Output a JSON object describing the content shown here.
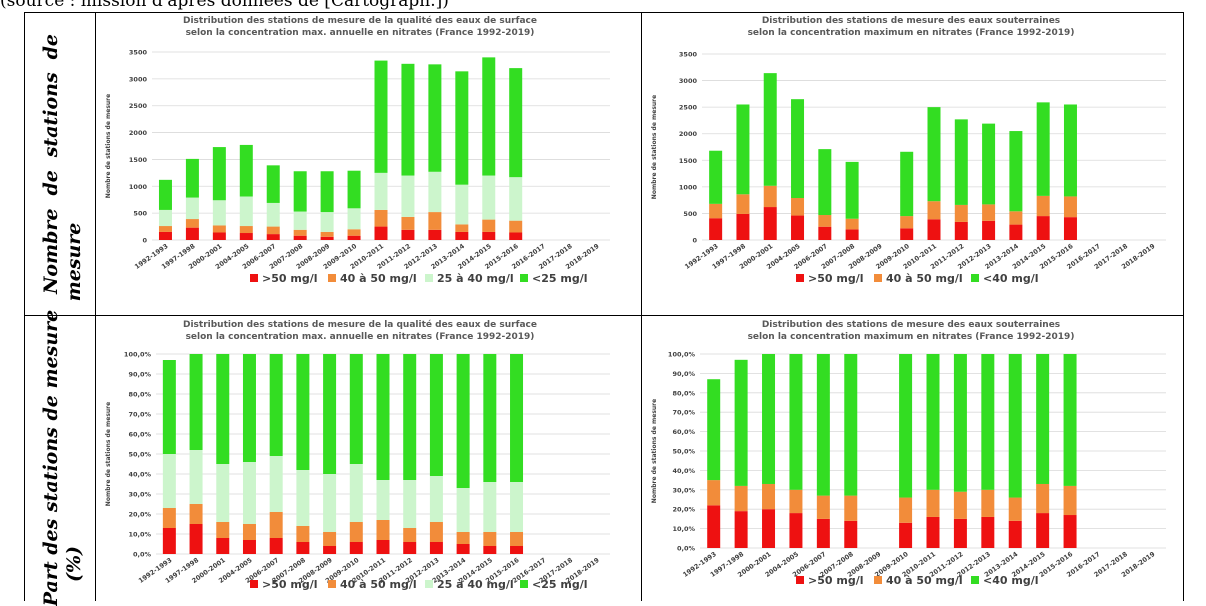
{
  "caption": "(source : mission d'après données de [Cartograph.])",
  "row_labels": {
    "top_line1": "Nombre de stations de",
    "top_line2": "mesure",
    "bottom_line1": "Part des stations de mesure",
    "bottom_line2": "(%)"
  },
  "colors": {
    "gt50": "#ee1111",
    "40to50": "#f28c3a",
    "25to40": "#ccf5cc",
    "lt25": "#33dd22",
    "lt40": "#33dd22"
  },
  "chart_data": [
    {
      "type": "bar",
      "stacked": true,
      "title_line1": "Distribution des stations de mesure de la qualité des eaux de surface",
      "title_line2": "selon la concentration max. annuelle en nitrates (France 1992-2019)",
      "ylabel": "Nombre de stations de mesure",
      "ylim": [
        0,
        3500
      ],
      "yticks": [
        "0",
        "500",
        "1000",
        "1500",
        "2000",
        "2500",
        "3000",
        "3500"
      ],
      "grid": true,
      "legend": "bottom",
      "categories": [
        "1992-1993",
        "1997-1998",
        "2000-2001",
        "2004-2005",
        "2006-2007",
        "2007-2008",
        "2008-2009",
        "2009-2010",
        "2010-2011",
        "2011-2012",
        "2012-2013",
        "2013-2014",
        "2014-2015",
        "2015-2016",
        "2016-2017",
        "2017-2018",
        "2018-2019"
      ],
      "series": [
        {
          "name": ">50 mg/l",
          "color": "#ee1111",
          "values": [
            150,
            230,
            140,
            130,
            110,
            80,
            60,
            80,
            250,
            190,
            190,
            150,
            150,
            140,
            0,
            0,
            0
          ]
        },
        {
          "name": "40 à 50 mg/l",
          "color": "#f28c3a",
          "values": [
            110,
            160,
            130,
            130,
            140,
            110,
            90,
            120,
            310,
            240,
            330,
            140,
            230,
            220,
            0,
            0,
            0
          ]
        },
        {
          "name": "25 à 40 mg/l",
          "color": "#ccf5cc",
          "values": [
            300,
            400,
            470,
            550,
            440,
            340,
            370,
            390,
            690,
            770,
            750,
            740,
            820,
            810,
            0,
            0,
            0
          ]
        },
        {
          "name": "<25 mg/l",
          "color": "#33dd22",
          "values": [
            560,
            720,
            990,
            960,
            700,
            750,
            760,
            700,
            2090,
            2080,
            2000,
            2110,
            2200,
            2030,
            0,
            0,
            0
          ]
        }
      ]
    },
    {
      "type": "bar",
      "stacked": true,
      "title_line1": "Distribution des stations de mesure des eaux souterraines",
      "title_line2": "selon la concentration maximum en nitrates (France 1992-2019)",
      "ylabel": "Nombre de stations de mesure",
      "ylim": [
        0,
        3500
      ],
      "yticks": [
        "0",
        "500",
        "1000",
        "1500",
        "2000",
        "2500",
        "3000",
        "3500"
      ],
      "grid": true,
      "legend": "bottom",
      "categories": [
        "1992-1993",
        "1997-1998",
        "2000-2001",
        "2004-2005",
        "2006-2007",
        "2007-2008",
        "2008-2009",
        "2009-2010",
        "2010-2011",
        "2011-2012",
        "2012-2013",
        "2013-2014",
        "2014-2015",
        "2015-2016",
        "2016-2017",
        "2017-2018",
        "2018-2019"
      ],
      "series": [
        {
          "name": ">50 mg/l",
          "color": "#ee1111",
          "values": [
            410,
            490,
            620,
            460,
            250,
            200,
            0,
            220,
            390,
            340,
            360,
            290,
            450,
            430,
            0,
            0,
            0
          ]
        },
        {
          "name": "40 à 50 mg/l",
          "color": "#f28c3a",
          "values": [
            270,
            370,
            400,
            330,
            220,
            200,
            0,
            230,
            340,
            320,
            310,
            250,
            380,
            390,
            0,
            0,
            0
          ]
        },
        {
          "name": "<40 mg/l",
          "color": "#33dd22",
          "values": [
            1000,
            1690,
            2120,
            1860,
            1240,
            1070,
            0,
            1210,
            1770,
            1610,
            1520,
            1510,
            1760,
            1730,
            0,
            0,
            0
          ]
        }
      ]
    },
    {
      "type": "bar",
      "stacked": true,
      "title_line1": "Distribution des stations de mesure de la qualité des eaux de surface",
      "title_line2": "selon la concentration max. annuelle en nitrates (France 1992-2019)",
      "ylabel": "Nombre de stations de mesure",
      "ylim": [
        0,
        100
      ],
      "yticks": [
        "0,0%",
        "10,0%",
        "20,0%",
        "30,0%",
        "40,0%",
        "50,0%",
        "60,0%",
        "70,0%",
        "80,0%",
        "90,0%",
        "100,0%"
      ],
      "grid": true,
      "legend": "bottom",
      "categories": [
        "1992-1993",
        "1997-1998",
        "2000-2001",
        "2004-2005",
        "2006-2007",
        "2007-2008",
        "2008-2009",
        "2009-2010",
        "2010-2011",
        "2011-2012",
        "2012-2013",
        "2013-2014",
        "2014-2015",
        "2015-2016",
        "2016-2017",
        "2017-2018",
        "2018-2019"
      ],
      "series": [
        {
          "name": ">50 mg/l",
          "color": "#ee1111",
          "values": [
            13,
            15,
            8,
            7,
            8,
            6,
            4,
            6,
            7,
            6,
            6,
            5,
            4,
            4,
            0,
            0,
            0
          ]
        },
        {
          "name": "40 à 50 mg/l",
          "color": "#f28c3a",
          "values": [
            10,
            10,
            8,
            8,
            13,
            8,
            7,
            10,
            10,
            7,
            10,
            6,
            7,
            7,
            0,
            0,
            0
          ]
        },
        {
          "name": "25 à 40 mg/l",
          "color": "#ccf5cc",
          "values": [
            27,
            27,
            29,
            31,
            28,
            28,
            29,
            29,
            20,
            24,
            23,
            22,
            25,
            25,
            0,
            0,
            0
          ]
        },
        {
          "name": "<25 mg/l",
          "color": "#33dd22",
          "values": [
            47,
            48,
            55,
            54,
            51,
            58,
            60,
            55,
            63,
            63,
            61,
            67,
            64,
            64,
            0,
            0,
            0
          ]
        }
      ]
    },
    {
      "type": "bar",
      "stacked": true,
      "title_line1": "Distribution des stations de mesure des eaux souterraines",
      "title_line2": "selon la concentration maximum en nitrates (France 1992-2019)",
      "ylabel": "Nombre de stations de mesure",
      "ylim": [
        0,
        100
      ],
      "yticks": [
        "0,0%",
        "10,0%",
        "20,0%",
        "30,0%",
        "40,0%",
        "50,0%",
        "60,0%",
        "70,0%",
        "80,0%",
        "90,0%",
        "100,0%"
      ],
      "grid": true,
      "legend": "bottom",
      "categories": [
        "1992-1993",
        "1997-1998",
        "2000-2001",
        "2004-2005",
        "2006-2007",
        "2007-2008",
        "2008-2009",
        "2009-2010",
        "2010-2011",
        "2011-2012",
        "2012-2013",
        "2013-2014",
        "2014-2015",
        "2015-2016",
        "2016-2017",
        "2017-2018",
        "2018-2019"
      ],
      "series": [
        {
          "name": ">50 mg/l",
          "color": "#ee1111",
          "values": [
            22,
            19,
            20,
            18,
            15,
            14,
            0,
            13,
            16,
            15,
            16,
            14,
            18,
            17,
            0,
            0,
            0
          ]
        },
        {
          "name": "40 à 50 mg/l",
          "color": "#f28c3a",
          "values": [
            13,
            13,
            13,
            12,
            12,
            13,
            0,
            13,
            14,
            14,
            14,
            12,
            15,
            15,
            0,
            0,
            0
          ]
        },
        {
          "name": "<40 mg/l",
          "color": "#33dd22",
          "values": [
            52,
            65,
            67,
            70,
            73,
            73,
            0,
            74,
            70,
            71,
            70,
            74,
            67,
            68,
            0,
            0,
            0
          ]
        }
      ]
    }
  ]
}
